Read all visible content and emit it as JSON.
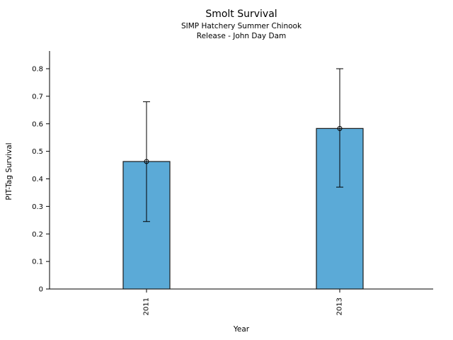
{
  "chart_data": {
    "type": "bar",
    "title": "Smolt Survival",
    "subtitle_lines": [
      "SIMP Hatchery Summer Chinook",
      "Release - John Day Dam"
    ],
    "xlabel": "Year",
    "ylabel": "PIT-Tag Survival",
    "categories": [
      "2011",
      "2013"
    ],
    "values": [
      0.463,
      0.583
    ],
    "error_low": [
      0.245,
      0.37
    ],
    "error_high": [
      0.68,
      0.8
    ],
    "yticks": [
      0,
      0.1,
      0.2,
      0.3,
      0.4,
      0.5,
      0.6,
      0.7,
      0.8
    ],
    "ylim": [
      0,
      0.86
    ],
    "bar_color": "#5BAAD7",
    "bar_edge_color": "#1a1a1a",
    "error_bar_color": "#000000",
    "marker": "open-circle",
    "legend": "none",
    "grid": false,
    "axis_style": "open-box-left-bottom"
  }
}
